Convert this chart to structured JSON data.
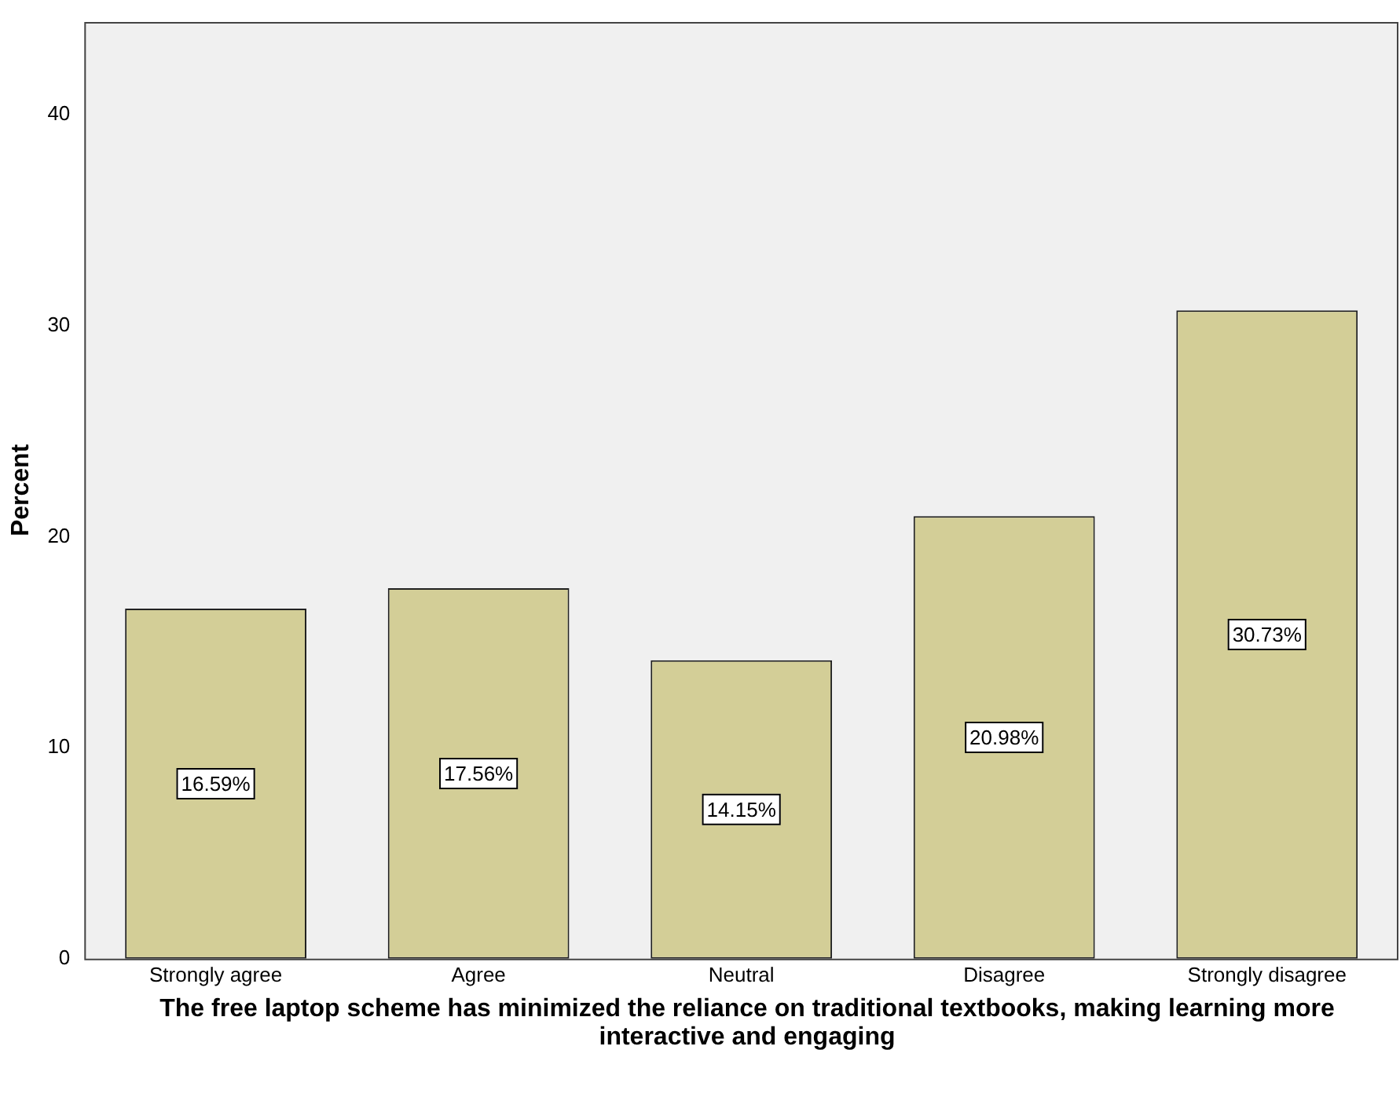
{
  "chart_data": {
    "type": "bar",
    "ylabel": "Percent",
    "xlabel": "The free laptop scheme has minimized the reliance on traditional textbooks, making learning more interactive and engaging",
    "categories": [
      "Strongly agree",
      "Agree",
      "Neutral",
      "Disagree",
      "Strongly disagree"
    ],
    "values": [
      16.59,
      17.56,
      14.15,
      20.98,
      30.73
    ],
    "value_labels": [
      "16.59%",
      "17.56%",
      "14.15%",
      "20.98%",
      "30.73%"
    ],
    "color": "#d3ce97",
    "ylim": [
      0,
      44.4
    ],
    "yticks": [
      0,
      10,
      20,
      30,
      40
    ],
    "grid": false,
    "legend": false
  }
}
